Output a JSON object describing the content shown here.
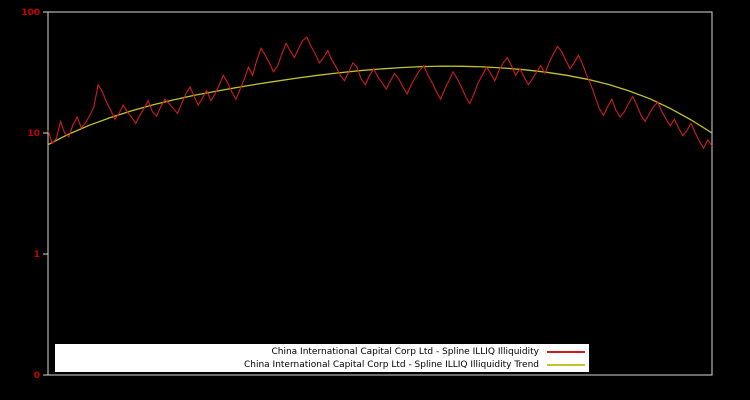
{
  "chart": {
    "background": "#000000",
    "axis_color": "#d9d9d9",
    "tick_label_color": "#cc0000",
    "yticks": [
      {
        "label": "100",
        "value": 100
      },
      {
        "label": "10",
        "value": 10
      },
      {
        "label": "1",
        "value": 1
      },
      {
        "label": "0",
        "value": 0.1
      }
    ]
  },
  "chart_data": {
    "type": "line",
    "title": "",
    "xlabel": "",
    "ylabel": "",
    "yscale": "log",
    "ylim": [
      0.1,
      100
    ],
    "grid": false,
    "legend_position": "bottom-center",
    "series": [
      {
        "name": "China International Capital Corp Ltd - Spline ILLIQ Illiquidity",
        "color": "#cf1d1d",
        "values": [
          10.5,
          8.2,
          9.0,
          12.5,
          10.0,
          9.3,
          11.8,
          13.5,
          11.0,
          12.2,
          14.0,
          16.5,
          25.0,
          22.0,
          18.0,
          15.5,
          13.0,
          14.5,
          17.0,
          15.0,
          13.5,
          12.0,
          14.0,
          16.0,
          18.5,
          15.0,
          13.8,
          16.5,
          19.0,
          17.5,
          16.0,
          14.5,
          17.5,
          21.0,
          24.0,
          20.0,
          17.0,
          19.5,
          22.5,
          18.5,
          21.0,
          25.0,
          30.0,
          26.0,
          22.0,
          19.0,
          23.0,
          28.0,
          35.0,
          30.0,
          40.0,
          50.0,
          44.0,
          38.0,
          32.0,
          36.0,
          45.0,
          55.0,
          48.0,
          42.0,
          50.0,
          58.0,
          62.0,
          52.0,
          45.0,
          38.0,
          42.0,
          48.0,
          40.0,
          35.0,
          30.0,
          27.0,
          32.0,
          38.0,
          35.0,
          28.0,
          25.0,
          30.0,
          34.0,
          29.0,
          26.0,
          23.0,
          27.0,
          31.0,
          28.0,
          24.0,
          21.0,
          25.0,
          29.0,
          33.0,
          36.0,
          30.0,
          26.0,
          22.0,
          19.0,
          23.0,
          27.0,
          32.0,
          28.0,
          24.0,
          20.0,
          17.5,
          21.0,
          26.0,
          30.0,
          35.0,
          31.0,
          27.0,
          33.0,
          38.0,
          42.0,
          36.0,
          30.0,
          34.0,
          29.0,
          25.0,
          28.0,
          32.0,
          36.0,
          31.0,
          38.0,
          45.0,
          52.0,
          47.0,
          40.0,
          34.0,
          38.0,
          44.0,
          37.0,
          30.0,
          25.0,
          20.0,
          16.0,
          14.0,
          16.5,
          19.0,
          15.5,
          13.5,
          15.0,
          17.5,
          20.0,
          17.0,
          14.0,
          12.5,
          14.5,
          16.5,
          18.0,
          15.0,
          13.0,
          11.5,
          13.0,
          11.0,
          9.5,
          10.5,
          12.0,
          10.0,
          8.5,
          7.5,
          8.8,
          7.8
        ]
      },
      {
        "name": "China International Capital Corp Ltd - Spline ILLIQ Illiquidity Trend",
        "color": "#c3c32a",
        "values": [
          8.0,
          9.8,
          11.6,
          13.4,
          15.2,
          17.0,
          18.7,
          20.4,
          22.0,
          23.6,
          25.2,
          26.8,
          28.4,
          30.0,
          31.4,
          32.7,
          33.8,
          34.7,
          35.4,
          35.7,
          35.6,
          35.2,
          34.4,
          33.3,
          31.8,
          30.0,
          27.8,
          25.2,
          22.3,
          19.2,
          15.9,
          12.8,
          10.0
        ]
      }
    ]
  }
}
